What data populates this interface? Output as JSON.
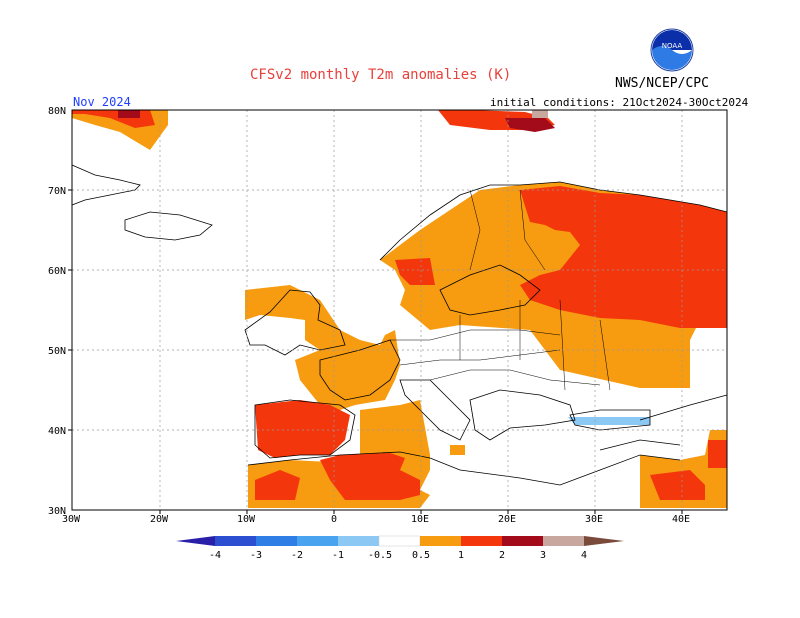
{
  "header": {
    "title": "CFSv2 monthly T2m anomalies (K)",
    "agency": "NWS/NCEP/CPC",
    "month": "Nov 2024",
    "initial_conditions": "initial conditions: 21Oct2024-30Oct2024"
  },
  "logo": {
    "icon": "noaa-logo-icon",
    "text": "NOAA"
  },
  "axes": {
    "lat_labels": [
      "80N",
      "70N",
      "60N",
      "50N",
      "40N",
      "30N"
    ],
    "lon_labels": [
      "30W",
      "20W",
      "10W",
      "0",
      "10E",
      "20E",
      "30E",
      "40E"
    ]
  },
  "legend": {
    "tick_labels": [
      "-4",
      "-3",
      "-2",
      "-1",
      "-0.5",
      "0.5",
      "1",
      "2",
      "3",
      "4"
    ],
    "colors": [
      "#2a1fa8",
      "#2b4fd0",
      "#2f7ee6",
      "#4aa3ee",
      "#8cc8f4",
      "#ffffff",
      "#f79b10",
      "#f4360c",
      "#a30a1a",
      "#c8a79e",
      "#7a4a3a"
    ]
  },
  "colors": {
    "anom_05_1": "#f79b10",
    "anom_1_2": "#f4360c",
    "anom_2_3": "#a30a1a",
    "anom_3_4": "#c8a79e",
    "anom_neg_05_1": "#8cc8f4",
    "title": "#e8413b",
    "month": "#1f3fff"
  }
}
